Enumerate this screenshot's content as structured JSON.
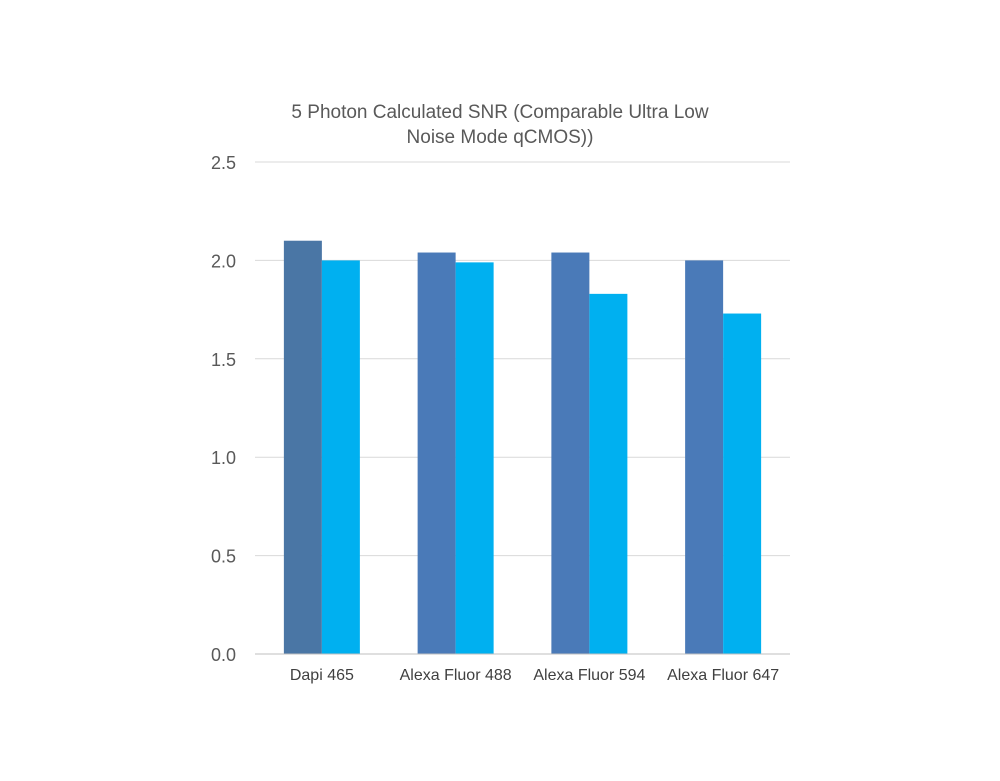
{
  "chart_data": {
    "type": "bar",
    "title_lines": [
      "5 Photon Calculated SNR (Comparable Ultra Low",
      "Noise Mode qCMOS))"
    ],
    "xlabel": "",
    "ylabel": "",
    "categories": [
      "Dapi 465",
      "Alexa Fluor 488",
      "Alexa Fluor 594",
      "Alexa Fluor 647"
    ],
    "series": [
      {
        "values": [
          2.1,
          2.04,
          2.04,
          2.0
        ],
        "color": "#4a7ab8",
        "point_colors": [
          "#4a76a5",
          "#4a7ab8",
          "#4a7ab8",
          "#4a7ab8"
        ]
      },
      {
        "values": [
          2.0,
          1.99,
          1.83,
          1.73
        ],
        "color": "#00b0f0"
      }
    ],
    "ylim": [
      0,
      2.5
    ],
    "yticks": [
      "0.0",
      "0.5",
      "1.0",
      "1.5",
      "2.0",
      "2.5"
    ],
    "grid": true,
    "legend": "none"
  }
}
